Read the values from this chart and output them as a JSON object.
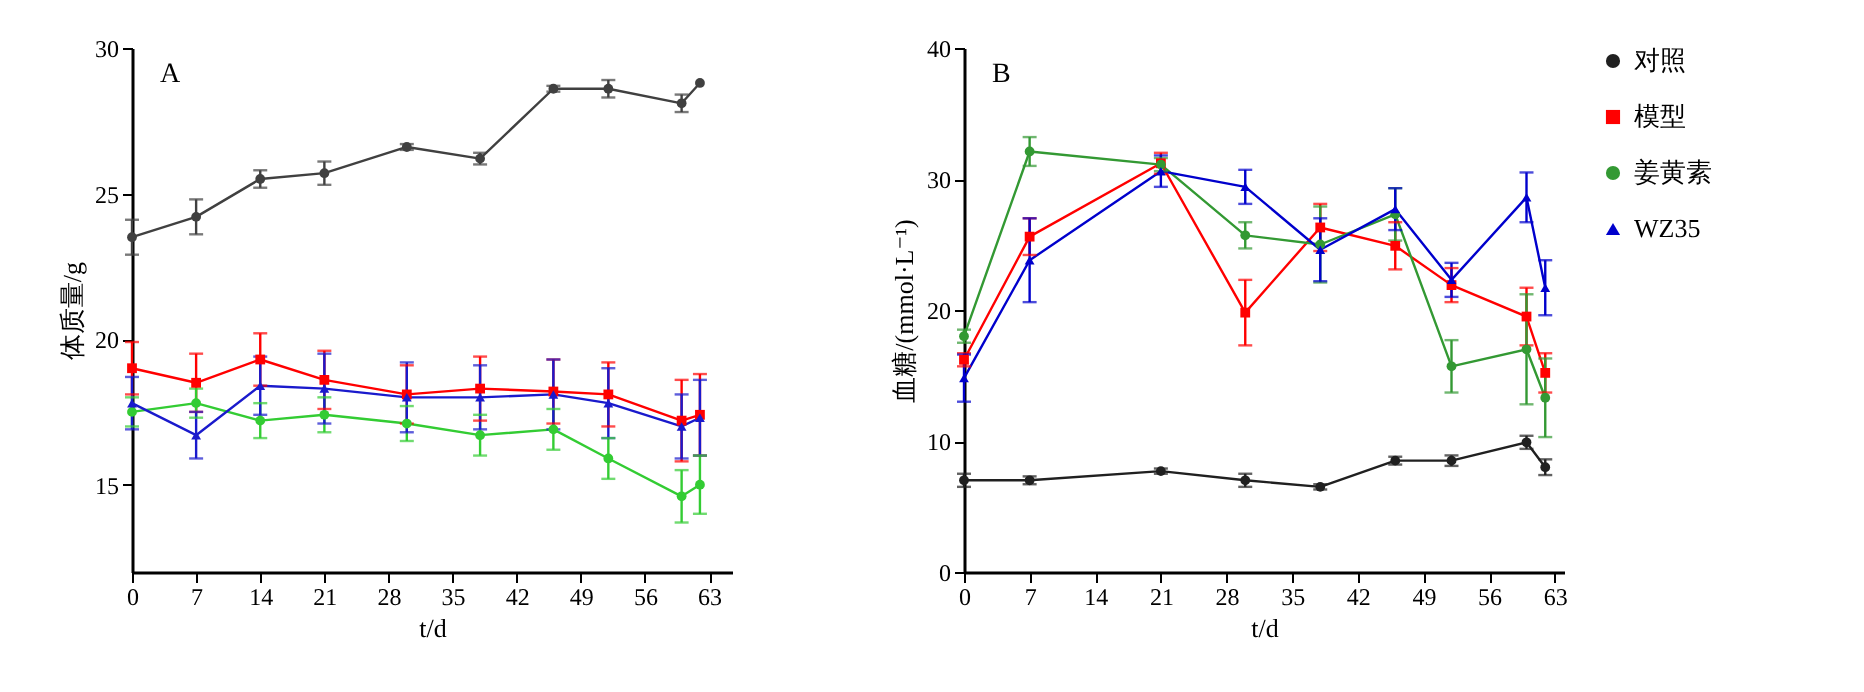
{
  "chart_data": [
    {
      "type": "line",
      "title": "A",
      "xlabel": "t/d",
      "ylabel": "体质量/g",
      "xlim": [
        0,
        65.5
      ],
      "xticks": [
        0,
        7,
        14,
        21,
        28,
        35,
        42,
        49,
        56,
        63
      ],
      "ylim": [
        12,
        30
      ],
      "yticks": [
        15,
        20,
        25,
        30
      ],
      "grid": false,
      "legend": false,
      "x": [
        0,
        7,
        14,
        21,
        30,
        38,
        46,
        52,
        60,
        62
      ],
      "series": [
        {
          "color": "#404040",
          "marker": "circle",
          "values": [
            23.5,
            24.2,
            25.5,
            25.7,
            26.6,
            26.2,
            28.6,
            28.6,
            28.1,
            28.8
          ],
          "errors": [
            0.6,
            0.6,
            0.3,
            0.4,
            0.1,
            0.2,
            0.1,
            0.3,
            0.3,
            null
          ]
        },
        {
          "color": "#ff0000",
          "marker": "square",
          "values": [
            19.0,
            18.5,
            19.3,
            18.6,
            18.1,
            18.3,
            18.2,
            18.1,
            17.2,
            17.4
          ],
          "errors": [
            0.9,
            1.0,
            0.9,
            1.0,
            1.0,
            1.1,
            1.1,
            1.1,
            1.4,
            1.4
          ]
        },
        {
          "color": "#33cc33",
          "marker": "circle",
          "values": [
            17.5,
            17.8,
            17.2,
            17.4,
            17.1,
            16.7,
            16.9,
            15.9,
            14.6,
            15.0
          ],
          "errors": [
            0.5,
            0.5,
            0.6,
            0.6,
            0.6,
            0.7,
            0.7,
            0.7,
            0.9,
            1.0
          ]
        },
        {
          "color": "#1a1acc",
          "marker": "triangle",
          "values": [
            17.8,
            16.7,
            18.4,
            18.3,
            18.0,
            18.0,
            18.1,
            17.8,
            17.0,
            17.3
          ],
          "errors": [
            0.9,
            0.8,
            1.0,
            1.2,
            1.2,
            1.1,
            1.2,
            1.2,
            1.1,
            1.3
          ]
        }
      ]
    },
    {
      "type": "line",
      "title": "B",
      "xlabel": "t/d",
      "ylabel": "血糖/(mmol·L⁻¹)",
      "xlim": [
        0,
        64
      ],
      "xticks": [
        0,
        7,
        14,
        21,
        28,
        35,
        42,
        49,
        56,
        63
      ],
      "ylim": [
        0,
        40
      ],
      "yticks": [
        0,
        10,
        20,
        30,
        40
      ],
      "grid": false,
      "legend": "right",
      "x": [
        0,
        7,
        21,
        30,
        38,
        46,
        52,
        60,
        62
      ],
      "series": [
        {
          "name": "对照",
          "color": "#202020",
          "marker": "circle",
          "values": [
            7.0,
            7.0,
            7.7,
            7.0,
            6.5,
            8.5,
            8.5,
            9.9,
            8.0
          ],
          "errors": [
            0.5,
            0.3,
            0.2,
            0.5,
            0.2,
            0.3,
            0.4,
            0.5,
            0.6
          ]
        },
        {
          "name": "模型",
          "color": "#ff0000",
          "marker": "square",
          "values": [
            16.2,
            25.6,
            31.2,
            19.8,
            26.3,
            24.9,
            21.9,
            19.5,
            15.2
          ],
          "errors": [
            0.5,
            1.4,
            0.8,
            2.5,
            1.8,
            1.8,
            1.3,
            2.2,
            1.5
          ]
        },
        {
          "name": "姜黄素",
          "color": "#339933",
          "marker": "circle",
          "values": [
            18.0,
            32.1,
            31.1,
            25.7,
            25.0,
            27.3,
            15.7,
            17.0,
            13.3
          ],
          "errors": [
            0.5,
            1.1,
            0.5,
            1.0,
            2.9,
            2.0,
            2.0,
            4.2,
            3.0
          ]
        },
        {
          "name": "WZ35",
          "color": "#0000cc",
          "marker": "triangle",
          "values": [
            14.8,
            23.8,
            30.6,
            29.4,
            24.6,
            27.7,
            22.3,
            28.6,
            21.7
          ],
          "errors": [
            1.8,
            3.2,
            1.2,
            1.3,
            2.4,
            1.6,
            1.3,
            1.9,
            2.1
          ]
        }
      ]
    }
  ]
}
